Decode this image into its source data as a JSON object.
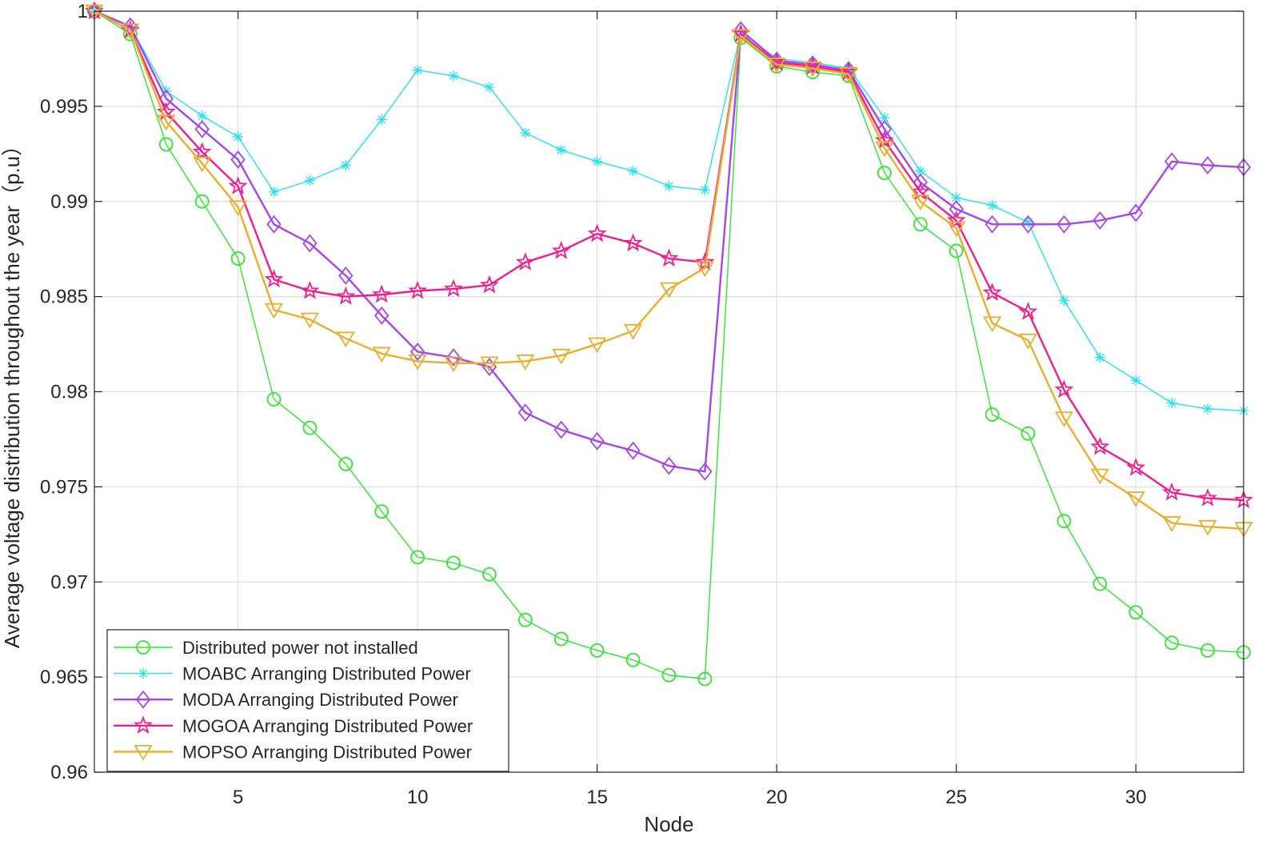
{
  "chart_data": {
    "type": "line",
    "title": "",
    "xlabel": "Node",
    "ylabel": "Average voltage distribution throughout the year（p.u）",
    "xlim": [
      1,
      33
    ],
    "ylim": [
      0.96,
      1.0
    ],
    "xticks": [
      5,
      10,
      15,
      20,
      25,
      30
    ],
    "xtick_labels": [
      "5",
      "10",
      "15",
      "20",
      "25",
      "30"
    ],
    "yticks": [
      0.96,
      0.965,
      0.97,
      0.975,
      0.98,
      0.985,
      0.99,
      0.995,
      1.0
    ],
    "ytick_labels": [
      "0.96",
      "0.965",
      "0.97",
      "0.975",
      "0.98",
      "0.985",
      "0.99",
      "0.995",
      "1"
    ],
    "grid": true,
    "legend_position": "bottom-left",
    "x": [
      1,
      2,
      3,
      4,
      5,
      6,
      7,
      8,
      9,
      10,
      11,
      12,
      13,
      14,
      15,
      16,
      17,
      18,
      19,
      20,
      21,
      22,
      23,
      24,
      25,
      26,
      27,
      28,
      29,
      30,
      31,
      32,
      33
    ],
    "series": [
      {
        "name": "Distributed power not installed",
        "color": "#2ee82e",
        "marker": "circle",
        "values": [
          1.0,
          0.9988,
          0.993,
          0.99,
          0.987,
          0.9796,
          0.9781,
          0.9762,
          0.9737,
          0.9713,
          0.971,
          0.9704,
          0.968,
          0.967,
          0.9664,
          0.9659,
          0.9651,
          0.9649,
          0.9986,
          0.9971,
          0.9968,
          0.9966,
          0.9915,
          0.9888,
          0.9874,
          0.9788,
          0.9778,
          0.9732,
          0.9699,
          0.9684,
          0.9668,
          0.9664,
          0.9663
        ]
      },
      {
        "name": "MOABC Arranging Distributed Power",
        "color": "#22e4ec",
        "marker": "asterisk",
        "values": [
          1.0,
          0.9992,
          0.9958,
          0.9945,
          0.9934,
          0.9905,
          0.9911,
          0.9919,
          0.9943,
          0.9969,
          0.9966,
          0.996,
          0.9936,
          0.9927,
          0.9921,
          0.9916,
          0.9908,
          0.9906,
          0.9989,
          0.9975,
          0.9973,
          0.997,
          0.9944,
          0.9916,
          0.9902,
          0.9898,
          0.9889,
          0.9848,
          0.9818,
          0.9806,
          0.9794,
          0.9791,
          0.979
        ]
      },
      {
        "name": "MODA Arranging Distributed Power",
        "color": "#a644f0",
        "marker": "diamond",
        "values": [
          1.0,
          0.9992,
          0.9954,
          0.9938,
          0.9922,
          0.9888,
          0.9878,
          0.9861,
          0.984,
          0.9821,
          0.9818,
          0.9813,
          0.9789,
          0.978,
          0.9774,
          0.9769,
          0.9761,
          0.9758,
          0.999,
          0.9974,
          0.9972,
          0.9969,
          0.9938,
          0.991,
          0.9896,
          0.9888,
          0.9888,
          0.9888,
          0.989,
          0.9894,
          0.9921,
          0.9919,
          0.9918
        ]
      },
      {
        "name": "MOGOA Arranging Distributed Power",
        "color": "#f41c8c",
        "marker": "star",
        "values": [
          1.0,
          0.999,
          0.9947,
          0.9926,
          0.9908,
          0.9859,
          0.9853,
          0.985,
          0.9851,
          0.9853,
          0.9854,
          0.9856,
          0.9868,
          0.9874,
          0.9883,
          0.9878,
          0.987,
          0.9868,
          0.9988,
          0.9973,
          0.9971,
          0.9968,
          0.9932,
          0.9905,
          0.989,
          0.9852,
          0.9842,
          0.9801,
          0.9771,
          0.976,
          0.9747,
          0.9744,
          0.9743
        ]
      },
      {
        "name": "MOPSO Arranging Distributed Power",
        "color": "#ecae2a",
        "marker": "triangle-down",
        "values": [
          1.0,
          0.999,
          0.9942,
          0.992,
          0.9897,
          0.9843,
          0.9838,
          0.9828,
          0.982,
          0.9816,
          0.9815,
          0.9815,
          0.9816,
          0.9819,
          0.9825,
          0.9832,
          0.9854,
          0.9865,
          0.9987,
          0.9972,
          0.997,
          0.9967,
          0.9928,
          0.99,
          0.9886,
          0.9836,
          0.9827,
          0.9786,
          0.9756,
          0.9744,
          0.9731,
          0.9729,
          0.9728
        ]
      }
    ]
  }
}
